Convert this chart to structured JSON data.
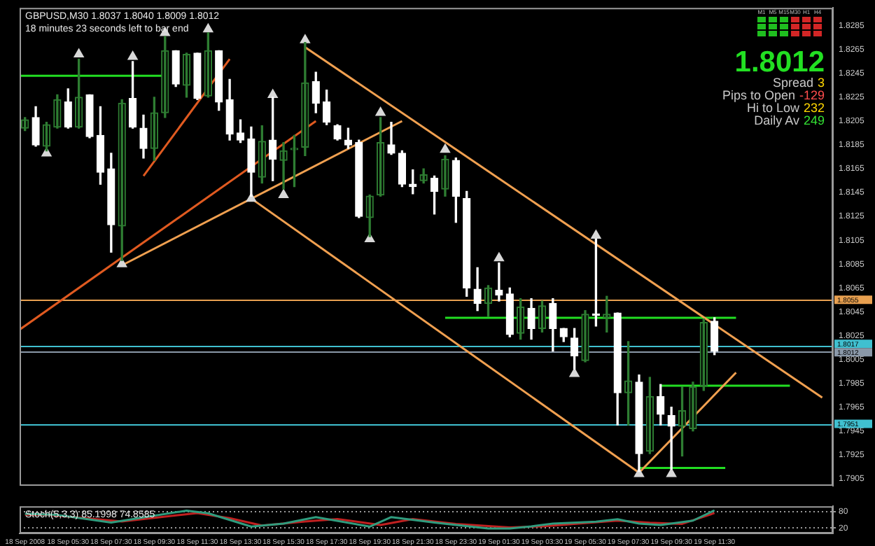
{
  "chart_data": [
    {
      "type": "candlestick",
      "title": "GBPUSD,M30 1.8037 1.8040 1.8009 1.8012",
      "subtitle": "18 minutes 23 seconds left to bar end",
      "x": [
        "2008-09-18T03:30",
        "2008-09-18T04:00",
        "2008-09-18T04:30",
        "2008-09-18T05:00",
        "2008-09-18T05:30",
        "2008-09-18T06:00",
        "2008-09-18T06:30",
        "2008-09-18T07:00",
        "2008-09-18T07:30",
        "2008-09-18T08:00",
        "2008-09-18T08:30",
        "2008-09-18T09:00",
        "2008-09-18T09:30",
        "2008-09-18T10:00",
        "2008-09-18T10:30",
        "2008-09-18T11:00",
        "2008-09-18T11:30",
        "2008-09-18T12:00",
        "2008-09-18T12:30",
        "2008-09-18T13:00",
        "2008-09-18T13:30",
        "2008-09-18T14:00",
        "2008-09-18T14:30",
        "2008-09-18T15:00",
        "2008-09-18T15:30",
        "2008-09-18T16:00",
        "2008-09-18T16:30",
        "2008-09-18T17:00",
        "2008-09-18T17:30",
        "2008-09-18T18:00",
        "2008-09-18T18:30",
        "2008-09-18T19:00",
        "2008-09-18T19:30",
        "2008-09-18T20:00",
        "2008-09-18T20:30",
        "2008-09-18T21:00",
        "2008-09-18T21:30",
        "2008-09-18T22:00",
        "2008-09-18T22:30",
        "2008-09-18T23:00",
        "2008-09-18T23:30",
        "2008-09-19T00:00",
        "2008-09-19T00:30",
        "2008-09-19T01:00",
        "2008-09-19T01:30",
        "2008-09-19T02:00",
        "2008-09-19T02:30",
        "2008-09-19T03:00",
        "2008-09-19T03:30",
        "2008-09-19T04:00",
        "2008-09-19T04:30",
        "2008-09-19T05:00",
        "2008-09-19T05:30",
        "2008-09-19T06:00",
        "2008-09-19T06:30",
        "2008-09-19T07:00",
        "2008-09-19T07:30",
        "2008-09-19T08:00",
        "2008-09-19T08:30",
        "2008-09-19T09:00",
        "2008-09-19T09:30",
        "2008-09-19T10:00",
        "2008-09-19T10:30",
        "2008-09-19T11:00",
        "2008-09-19T11:30"
      ],
      "ohlc": [
        [
          1.8199,
          1.8208,
          1.8197,
          1.8206
        ],
        [
          1.8208,
          1.8217,
          1.8184,
          1.8185
        ],
        [
          1.8184,
          1.8204,
          1.818,
          1.8202
        ],
        [
          1.82,
          1.8227,
          1.8199,
          1.8223
        ],
        [
          1.8221,
          1.8232,
          1.8199,
          1.82
        ],
        [
          1.82,
          1.8257,
          1.8199,
          1.8225
        ],
        [
          1.8227,
          1.8227,
          1.8191,
          1.8192
        ],
        [
          1.8193,
          1.8217,
          1.8152,
          1.8162
        ],
        [
          1.8165,
          1.8178,
          1.8095,
          1.8118
        ],
        [
          1.8117,
          1.8223,
          1.8088,
          1.822
        ],
        [
          1.8224,
          1.8255,
          1.8199,
          1.82
        ],
        [
          1.8199,
          1.821,
          1.8174,
          1.8182
        ],
        [
          1.8182,
          1.8225,
          1.8172,
          1.8212
        ],
        [
          1.8212,
          1.8276,
          1.8208,
          1.8264
        ],
        [
          1.8264,
          1.8264,
          1.8234,
          1.8236
        ],
        [
          1.8235,
          1.8262,
          1.8225,
          1.8261
        ],
        [
          1.8262,
          1.8262,
          1.8223,
          1.8224
        ],
        [
          1.8226,
          1.8279,
          1.8225,
          1.8264
        ],
        [
          1.8264,
          1.8264,
          1.8214,
          1.8221
        ],
        [
          1.8223,
          1.824,
          1.8189,
          1.8194
        ],
        [
          1.8195,
          1.8206,
          1.8187,
          1.8189
        ],
        [
          1.819,
          1.82,
          1.8142,
          1.8162
        ],
        [
          1.8158,
          1.8201,
          1.8153,
          1.8188
        ],
        [
          1.8189,
          1.8225,
          1.8155,
          1.8173
        ],
        [
          1.8172,
          1.8187,
          1.8148,
          1.818
        ],
        [
          1.8181,
          1.8193,
          1.815,
          1.8182
        ],
        [
          1.8183,
          1.8271,
          1.8176,
          1.8237
        ],
        [
          1.8238,
          1.8246,
          1.8212,
          1.822
        ],
        [
          1.8221,
          1.8231,
          1.8202,
          1.8204
        ],
        [
          1.8201,
          1.8202,
          1.8189,
          1.819
        ],
        [
          1.8189,
          1.8199,
          1.8182,
          1.8185
        ],
        [
          1.8187,
          1.8189,
          1.8124,
          1.8125
        ],
        [
          1.8124,
          1.8143,
          1.8108,
          1.8142
        ],
        [
          1.8143,
          1.8208,
          1.8142,
          1.8187
        ],
        [
          1.8185,
          1.8204,
          1.8177,
          1.8178
        ],
        [
          1.8178,
          1.818,
          1.815,
          1.8152
        ],
        [
          1.8152,
          1.8164,
          1.8144,
          1.815
        ],
        [
          1.8155,
          1.8165,
          1.8153,
          1.816
        ],
        [
          1.8157,
          1.8159,
          1.8127,
          1.8146
        ],
        [
          1.8148,
          1.8176,
          1.8142,
          1.8173
        ],
        [
          1.8172,
          1.8174,
          1.812,
          1.8142
        ],
        [
          1.814,
          1.8146,
          1.8058,
          1.8065
        ],
        [
          1.8064,
          1.8082,
          1.8046,
          1.8052
        ],
        [
          1.8052,
          1.8067,
          1.8041,
          1.8065
        ],
        [
          1.8063,
          1.8086,
          1.8054,
          1.8059
        ],
        [
          1.806,
          1.8065,
          1.8024,
          1.8026
        ],
        [
          1.8027,
          1.8056,
          1.8022,
          1.8049
        ],
        [
          1.8048,
          1.8056,
          1.8022,
          1.8031
        ],
        [
          1.8031,
          1.8054,
          1.8028,
          1.805
        ],
        [
          1.8052,
          1.8056,
          1.8012,
          1.8031
        ],
        [
          1.8031,
          1.8031,
          1.802,
          1.8024
        ],
        [
          1.8023,
          1.8031,
          1.7997,
          1.8008
        ],
        [
          1.8004,
          1.8046,
          1.8003,
          1.8043
        ],
        [
          1.8042,
          1.8106,
          1.8033,
          1.8042
        ],
        [
          1.804,
          1.8058,
          1.8028,
          1.8043
        ],
        [
          1.8044,
          1.8044,
          1.795,
          1.7977
        ],
        [
          1.7977,
          1.802,
          1.795,
          1.7987
        ],
        [
          1.7986,
          1.7992,
          1.7911,
          1.7926
        ],
        [
          1.7928,
          1.799,
          1.7926,
          1.7974
        ],
        [
          1.7974,
          1.7984,
          1.795,
          1.7959
        ],
        [
          1.7958,
          1.7965,
          1.7913,
          1.7949
        ],
        [
          1.7949,
          1.7982,
          1.7924,
          1.7962
        ],
        [
          1.7947,
          1.7986,
          1.7945,
          1.7982
        ],
        [
          1.7983,
          1.8039,
          1.7979,
          1.8036
        ],
        [
          1.8037,
          1.804,
          1.8009,
          1.8012
        ]
      ],
      "colors": [
        "#2e7d32",
        "#ffffff",
        "#2e7d32",
        "#2e7d32",
        "#ffffff",
        "#2e7d32",
        "#ffffff",
        "#ffffff",
        "#ffffff",
        "#2e7d32",
        "#ffffff",
        "#ffffff",
        "#2e7d32",
        "#2e7d32",
        "#ffffff",
        "#2e7d32",
        "#ffffff",
        "#2e7d32",
        "#ffffff",
        "#ffffff",
        "#ffffff",
        "#ffffff",
        "#2e7d32",
        "#ffffff",
        "#2e7d32",
        "#2e7d32",
        "#2e7d32",
        "#ffffff",
        "#ffffff",
        "#ffffff",
        "#ffffff",
        "#ffffff",
        "#2e7d32",
        "#2e7d32",
        "#ffffff",
        "#ffffff",
        "#ffffff",
        "#2e7d32",
        "#ffffff",
        "#2e7d32",
        "#ffffff",
        "#ffffff",
        "#ffffff",
        "#2e7d32",
        "#ffffff",
        "#ffffff",
        "#2e7d32",
        "#ffffff",
        "#2e7d32",
        "#ffffff",
        "#ffffff",
        "#ffffff",
        "#2e7d32",
        "#ffffff",
        "#2e7d32",
        "#ffffff",
        "#2e7d32",
        "#ffffff",
        "#2e7d32",
        "#ffffff",
        "#ffffff",
        "#2e7d32",
        "#2e7d32",
        "#2e7d32",
        "#ffffff"
      ],
      "series": [
        {
          "type": "line",
          "color": "#f0a050",
          "x": [
            "2008-09-18T16:30",
            "2008-09-19T16:30"
          ],
          "values": [
            1.8267,
            1.7973
          ]
        },
        {
          "type": "line",
          "color": "#f0a050",
          "x": [
            "2008-09-18T14:00",
            "2008-09-19T08:00"
          ],
          "values": [
            1.814,
            1.791
          ]
        },
        {
          "type": "line",
          "color": "#f0a050",
          "x": [
            "2008-09-18T08:00",
            "2008-09-18T21:00"
          ],
          "values": [
            1.8084,
            1.8205
          ]
        },
        {
          "type": "line",
          "color": "#e05a20",
          "x": [
            "2008-09-18T03:15",
            "2008-09-18T17:00"
          ],
          "values": [
            1.803,
            1.8205
          ]
        },
        {
          "type": "line",
          "color": "#e05a20",
          "x": [
            "2008-09-18T09:00",
            "2008-09-18T13:00"
          ],
          "values": [
            1.8159,
            1.8257
          ]
        },
        {
          "type": "line",
          "color": "#f0a050",
          "x": [
            "2008-09-19T08:00",
            "2008-09-19T12:30"
          ],
          "values": [
            1.791,
            1.7994
          ]
        },
        {
          "type": "line",
          "color": "#22dd22",
          "x": [
            "2008-09-18T03:15",
            "2008-09-18T10:00"
          ],
          "values": [
            1.8243,
            1.8243
          ]
        },
        {
          "type": "line",
          "color": "#22dd22",
          "x": [
            "2008-09-18T23:00",
            "2008-09-19T12:30"
          ],
          "values": [
            1.804,
            1.804
          ]
        },
        {
          "type": "line",
          "color": "#22dd22",
          "x": [
            "2008-09-19T09:00",
            "2008-09-19T15:00"
          ],
          "values": [
            1.7983,
            1.7983
          ]
        },
        {
          "type": "line",
          "color": "#22dd22",
          "x": [
            "2008-09-19T08:00",
            "2008-09-19T12:00"
          ],
          "values": [
            1.7914,
            1.7914
          ]
        },
        {
          "type": "scatter",
          "color": "#d8d8d8",
          "marker": "triangle",
          "x": [
            "2008-09-18T06:00",
            "2008-09-18T08:30",
            "2008-09-18T10:00",
            "2008-09-18T12:00",
            "2008-09-18T15:00",
            "2008-09-18T16:30",
            "2008-09-18T20:00",
            "2008-09-18T23:00",
            "2008-09-19T01:30",
            "2008-09-19T06:00"
          ],
          "values": [
            1.8261,
            1.8259,
            1.8279,
            1.8282,
            1.8227,
            1.8273,
            1.8212,
            1.8181,
            1.809,
            1.8109
          ]
        },
        {
          "type": "scatter",
          "color": "#d8d8d8",
          "marker": "triangle",
          "x": [
            "2008-09-18T04:30",
            "2008-09-18T08:00",
            "2008-09-18T14:00",
            "2008-09-18T15:30",
            "2008-09-18T19:30",
            "2008-09-19T05:00",
            "2008-09-19T08:00",
            "2008-09-19T09:30"
          ],
          "values": [
            1.8178,
            1.8085,
            1.814,
            1.8143,
            1.8106,
            1.7993,
            1.7909,
            1.7909
          ]
        }
      ],
      "xlim": [
        "2008-09-18T03:15",
        "2008-09-19T17:00"
      ],
      "ylim": [
        1.7899,
        1.83
      ],
      "yticks": [
        1.8285,
        1.8265,
        1.8245,
        1.8225,
        1.8205,
        1.8185,
        1.8165,
        1.8145,
        1.8125,
        1.8105,
        1.8085,
        1.8065,
        1.8045,
        1.8025,
        1.8005,
        1.7985,
        1.7965,
        1.7945,
        1.7925,
        1.7905
      ],
      "ref_lines": [
        {
          "axis": "y",
          "value": 1.8055,
          "label": "1.8055",
          "color": "#e8a050"
        },
        {
          "axis": "y",
          "value": 1.8017,
          "label": "1.8017",
          "color": "#40c0d0"
        },
        {
          "axis": "y",
          "value": 1.8012,
          "label": "1.8012",
          "color": "#8a98a8"
        },
        {
          "axis": "y",
          "value": 1.7951,
          "label": "1.7951",
          "color": "#40c0d0"
        }
      ],
      "tick_labels": "y",
      "annotations": [
        "M1",
        "M5",
        "M15",
        "M30",
        "H1",
        "H4",
        "1.8012",
        "Spread",
        "3",
        "Pips to Open",
        "-129",
        "Hi to Low",
        "232",
        "Daily Av",
        "249"
      ]
    },
    {
      "type": "line",
      "title": "Stoch(5,3,3) 85.1998 74.8585",
      "series": [
        {
          "color": "#2f9c7e",
          "x": [
            "2008-09-18T03:30",
            "2008-09-18T05:00",
            "2008-09-18T07:30",
            "2008-09-18T11:00",
            "2008-09-18T12:00",
            "2008-09-18T14:00",
            "2008-09-18T15:30",
            "2008-09-18T17:00",
            "2008-09-18T19:30",
            "2008-09-18T20:30",
            "2008-09-18T22:30",
            "2008-09-19T01:00",
            "2008-09-19T02:00",
            "2008-09-19T03:00",
            "2008-09-19T04:00",
            "2008-09-19T06:00",
            "2008-09-19T07:00",
            "2008-09-19T08:00",
            "2008-09-19T09:00",
            "2008-09-19T10:30",
            "2008-09-19T11:30"
          ],
          "values": [
            72,
            68,
            40,
            84,
            74,
            25,
            36,
            60,
            25,
            60,
            40,
            18,
            18,
            26,
            36,
            43,
            52,
            36,
            31,
            47,
            85
          ]
        },
        {
          "color": "#c02020",
          "x": [
            "2008-09-18T03:30",
            "2008-09-18T04:30",
            "2008-09-18T08:00",
            "2008-09-18T11:30",
            "2008-09-18T13:00",
            "2008-09-18T14:30",
            "2008-09-18T16:30",
            "2008-09-18T18:00",
            "2008-09-18T20:00",
            "2008-09-18T21:30",
            "2008-09-18T23:30",
            "2008-09-19T02:00",
            "2008-09-19T03:30",
            "2008-09-19T05:30",
            "2008-09-19T07:00",
            "2008-09-19T08:30",
            "2008-09-19T10:00",
            "2008-09-19T11:30"
          ],
          "values": [
            68,
            69,
            44,
            75,
            56,
            29,
            44,
            53,
            31,
            53,
            35,
            22,
            26,
            38,
            47,
            39,
            35,
            75
          ]
        }
      ],
      "xlim": [
        "2008-09-18T03:15",
        "2008-09-19T17:00"
      ],
      "xticks": [
        {
          "value": "2008-09-18T03:30",
          "label": "18 Sep 2008"
        },
        {
          "value": "2008-09-18T05:30",
          "label": "18 Sep 05:30"
        },
        {
          "value": "2008-09-18T07:30",
          "label": "18 Sep 07:30"
        },
        {
          "value": "2008-09-18T09:30",
          "label": "18 Sep 09:30"
        },
        {
          "value": "2008-09-18T11:30",
          "label": "18 Sep 11:30"
        },
        {
          "value": "2008-09-18T13:30",
          "label": "18 Sep 13:30"
        },
        {
          "value": "2008-09-18T15:30",
          "label": "18 Sep 15:30"
        },
        {
          "value": "2008-09-18T17:30",
          "label": "18 Sep 17:30"
        },
        {
          "value": "2008-09-18T19:30",
          "label": "18 Sep 19:30"
        },
        {
          "value": "2008-09-18T21:30",
          "label": "18 Sep 21:30"
        },
        {
          "value": "2008-09-18T23:30",
          "label": "18 Sep 23:30"
        },
        {
          "value": "2008-09-19T01:30",
          "label": "19 Sep 01:30"
        },
        {
          "value": "2008-09-19T03:30",
          "label": "19 Sep 03:30"
        },
        {
          "value": "2008-09-19T05:30",
          "label": "19 Sep 05:30"
        },
        {
          "value": "2008-09-19T07:30",
          "label": "19 Sep 07:30"
        },
        {
          "value": "2008-09-19T09:30",
          "label": "19 Sep 09:30"
        },
        {
          "value": "2008-09-19T11:30",
          "label": "19 Sep 11:30"
        }
      ],
      "ylim": [
        0,
        100
      ],
      "yticks": [
        20,
        80
      ],
      "grid": "y"
    }
  ]
}
